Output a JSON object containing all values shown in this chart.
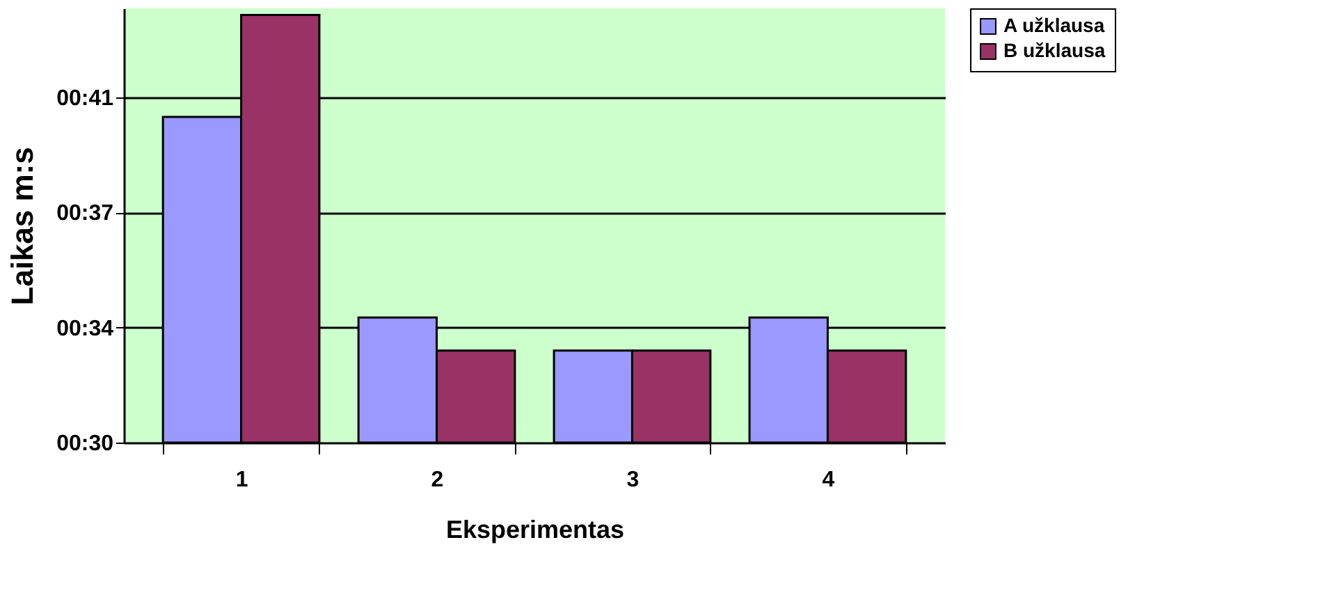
{
  "chart_data": {
    "type": "bar",
    "xlabel": "Eksperimentas",
    "ylabel": "Laikas  m:s",
    "categories": [
      "1",
      "2",
      "3",
      "4"
    ],
    "series": [
      {
        "name": "A užklausa",
        "color": "#9999ff",
        "values": [
          39.9,
          33.8,
          32.8,
          33.8
        ]
      },
      {
        "name": "B užklausa",
        "color": "#993366",
        "values": [
          43.0,
          32.8,
          32.8,
          32.8
        ]
      }
    ],
    "ylim": [
      30,
      43.2
    ],
    "yticks": [
      {
        "value": 30,
        "label": "00:30"
      },
      {
        "value": 33.5,
        "label": "00:34"
      },
      {
        "value": 37,
        "label": "00:37"
      },
      {
        "value": 40.5,
        "label": "00:41"
      }
    ],
    "grid": "y",
    "legend": "right"
  }
}
